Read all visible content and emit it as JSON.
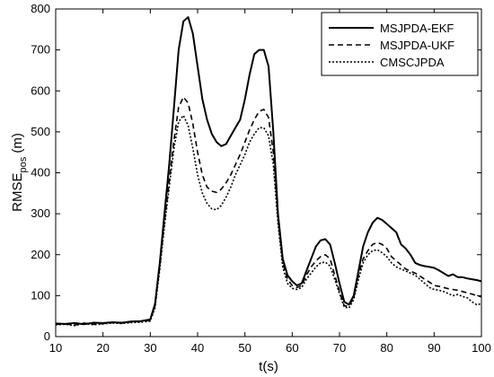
{
  "chart_data": {
    "type": "line",
    "title": "",
    "xlabel": "t(s)",
    "ylabel_main": "RMSE",
    "ylabel_sub": "pos",
    "ylabel_unit": " (m)",
    "xlim": [
      10,
      100
    ],
    "ylim": [
      0,
      800
    ],
    "xticks": [
      10,
      20,
      30,
      40,
      50,
      60,
      70,
      80,
      90,
      100
    ],
    "yticks": [
      0,
      100,
      200,
      300,
      400,
      500,
      600,
      700,
      800
    ],
    "grid": false,
    "legend_position": "top-right",
    "series": [
      {
        "name": "MSJPDA-EKF",
        "line_style": "solid",
        "color": "#000000",
        "x": [
          10,
          12,
          14,
          16,
          18,
          20,
          22,
          24,
          26,
          28,
          30,
          31,
          32,
          33,
          34,
          35,
          36,
          37,
          38,
          39,
          40,
          41,
          42,
          43,
          44,
          45,
          46,
          47,
          48,
          49,
          50,
          51,
          52,
          53,
          54,
          55,
          56,
          57,
          58,
          59,
          60,
          61,
          62,
          63,
          64,
          65,
          66,
          67,
          68,
          69,
          70,
          71,
          72,
          73,
          74,
          75,
          76,
          77,
          78,
          79,
          80,
          81,
          82,
          83,
          84,
          85,
          86,
          87,
          88,
          89,
          90,
          91,
          92,
          93,
          94,
          95,
          96,
          97,
          98,
          99,
          100
        ],
        "y": [
          32,
          31,
          33,
          30,
          34,
          33,
          35,
          34,
          37,
          38,
          42,
          80,
          180,
          300,
          420,
          560,
          700,
          770,
          780,
          740,
          660,
          580,
          530,
          495,
          475,
          465,
          470,
          490,
          510,
          530,
          580,
          640,
          690,
          700,
          700,
          660,
          500,
          300,
          190,
          150,
          135,
          125,
          130,
          160,
          190,
          220,
          235,
          238,
          225,
          180,
          130,
          85,
          78,
          100,
          160,
          220,
          255,
          278,
          290,
          285,
          275,
          265,
          255,
          225,
          215,
          200,
          180,
          175,
          172,
          170,
          168,
          162,
          155,
          148,
          152,
          145,
          145,
          142,
          140,
          138,
          135
        ]
      },
      {
        "name": "MSJPDA-UKF",
        "line_style": "dashed",
        "color": "#000000",
        "x": [
          10,
          12,
          14,
          16,
          18,
          20,
          22,
          24,
          26,
          28,
          30,
          31,
          32,
          33,
          34,
          35,
          36,
          37,
          38,
          39,
          40,
          41,
          42,
          43,
          44,
          45,
          46,
          47,
          48,
          49,
          50,
          51,
          52,
          53,
          54,
          55,
          56,
          57,
          58,
          59,
          60,
          61,
          62,
          63,
          64,
          65,
          66,
          67,
          68,
          69,
          70,
          71,
          72,
          73,
          74,
          75,
          76,
          77,
          78,
          79,
          80,
          81,
          82,
          83,
          84,
          85,
          86,
          87,
          88,
          89,
          90,
          91,
          92,
          93,
          94,
          95,
          96,
          97,
          98,
          99,
          100
        ],
        "y": [
          30,
          31,
          28,
          33,
          30,
          32,
          34,
          33,
          36,
          37,
          40,
          75,
          170,
          280,
          380,
          480,
          560,
          585,
          570,
          520,
          450,
          395,
          365,
          355,
          352,
          360,
          375,
          395,
          420,
          445,
          475,
          505,
          530,
          550,
          555,
          535,
          450,
          290,
          180,
          140,
          125,
          120,
          125,
          150,
          170,
          185,
          195,
          200,
          190,
          150,
          110,
          75,
          75,
          95,
          150,
          190,
          210,
          225,
          230,
          225,
          215,
          195,
          185,
          175,
          165,
          160,
          155,
          148,
          140,
          133,
          125,
          123,
          120,
          117,
          115,
          113,
          110,
          107,
          104,
          100,
          97
        ]
      },
      {
        "name": "CMSCJPDA",
        "line_style": "dotted",
        "color": "#000000",
        "x": [
          10,
          12,
          14,
          16,
          18,
          20,
          22,
          24,
          26,
          28,
          30,
          31,
          32,
          33,
          34,
          35,
          36,
          37,
          38,
          39,
          40,
          41,
          42,
          43,
          44,
          45,
          46,
          47,
          48,
          49,
          50,
          51,
          52,
          53,
          54,
          55,
          56,
          57,
          58,
          59,
          60,
          61,
          62,
          63,
          64,
          65,
          66,
          67,
          68,
          69,
          70,
          71,
          72,
          73,
          74,
          75,
          76,
          77,
          78,
          79,
          80,
          81,
          82,
          83,
          84,
          85,
          86,
          87,
          88,
          89,
          90,
          91,
          92,
          93,
          94,
          95,
          96,
          97,
          98,
          99,
          100
        ],
        "y": [
          29,
          30,
          27,
          32,
          29,
          31,
          33,
          32,
          34,
          35,
          38,
          70,
          165,
          270,
          365,
          460,
          525,
          540,
          515,
          460,
          395,
          350,
          325,
          312,
          310,
          320,
          340,
          365,
          395,
          420,
          445,
          475,
          495,
          510,
          510,
          490,
          420,
          275,
          170,
          130,
          118,
          115,
          120,
          140,
          155,
          170,
          180,
          182,
          172,
          140,
          105,
          72,
          70,
          90,
          140,
          180,
          200,
          210,
          212,
          205,
          195,
          180,
          170,
          165,
          160,
          155,
          150,
          140,
          130,
          120,
          115,
          113,
          110,
          105,
          100,
          103,
          98,
          95,
          85,
          78,
          80
        ]
      }
    ]
  }
}
